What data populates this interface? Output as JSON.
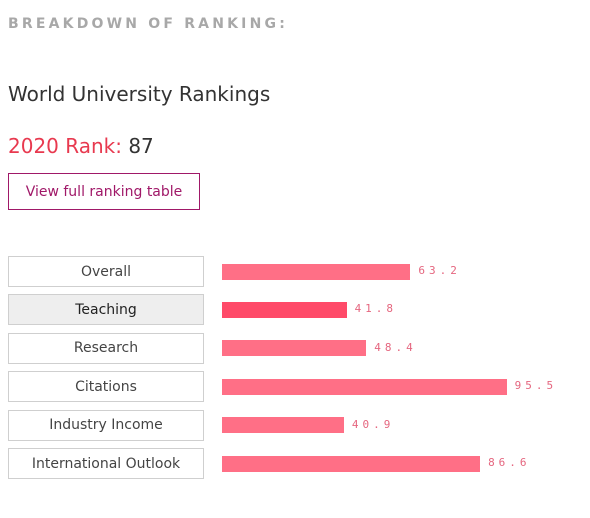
{
  "header": {
    "eyebrow": "BREAKDOWN OF RANKING:",
    "title": "World University Rankings"
  },
  "rank": {
    "label": "2020 Rank:",
    "value": "87"
  },
  "button": "View full ranking table",
  "chart_data": {
    "type": "bar",
    "categories": [
      "Overall",
      "Teaching",
      "Research",
      "Citations",
      "Industry Income",
      "International Outlook"
    ],
    "values": [
      63.2,
      41.8,
      48.4,
      95.5,
      40.9,
      86.6
    ],
    "color": "#ff6f86",
    "active_color": "#ff4a69",
    "active": 1
  }
}
